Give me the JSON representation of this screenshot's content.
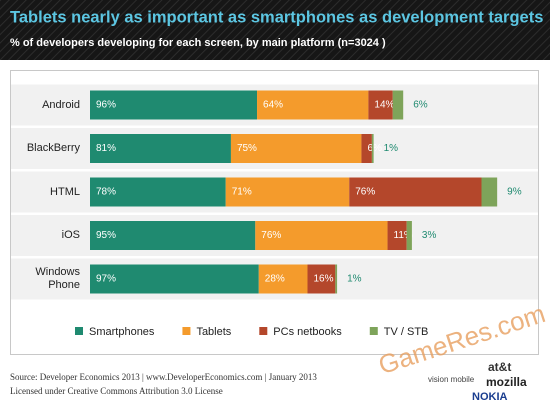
{
  "chart_data": {
    "type": "bar",
    "orientation": "horizontal",
    "stacked": true,
    "title": "Tablets nearly as important as smartphones as development targets",
    "subtitle": "% of developers developing for each screen, by main platform (n=3024 )",
    "categories": [
      "Android",
      "BlackBerry",
      "HTML",
      "iOS",
      "Windows Phone"
    ],
    "series": [
      {
        "name": "Smartphones",
        "color": "#1f8a70",
        "values": [
          96,
          81,
          78,
          95,
          97
        ],
        "value_labels": [
          "96%",
          "81%",
          "78%",
          "95%",
          "97%"
        ]
      },
      {
        "name": "Tablets",
        "color": "#f49b2c",
        "values": [
          64,
          75,
          71,
          76,
          28
        ],
        "value_labels": [
          "64%",
          "75%",
          "71%",
          "76%",
          "28%"
        ]
      },
      {
        "name": "PCs netbooks",
        "color": "#b4472b",
        "values": [
          14,
          6,
          76,
          11,
          16
        ],
        "value_labels": [
          "14%",
          "6%",
          "76%",
          "11%",
          "16%"
        ]
      },
      {
        "name": "TV / STB",
        "color": "#7ea45a",
        "values": [
          6,
          1,
          9,
          3,
          1
        ],
        "value_labels": [
          "6%",
          "1%",
          "9%",
          "3%",
          "1%"
        ]
      }
    ],
    "legend": "bottom"
  },
  "footer": {
    "source": "Source: Developer Economics 2013 | www.DeveloperEconomics.com | January 2013",
    "license": "Licensed under Creative Commons Attribution 3.0 License",
    "logos": [
      "at&t",
      "mozilla",
      "NOKIA",
      "vision mobile"
    ],
    "watermark": "GameRes.com"
  }
}
